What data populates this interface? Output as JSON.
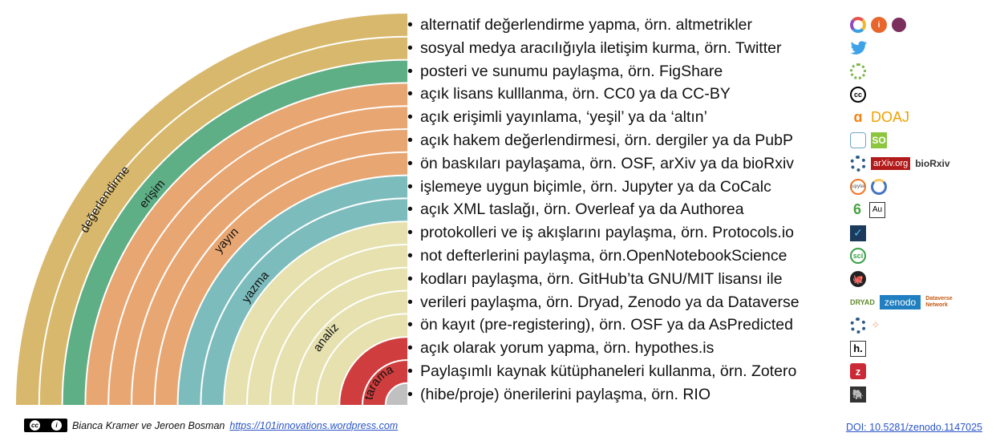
{
  "colors": {
    "degerlendirme": "#d8b86c",
    "erisim": "#5eae86",
    "yayin": "#e8a672",
    "yazma": "#7dbcbd",
    "analiz": "#e6e1af",
    "tarama": "#cf3d3e",
    "center": "#c0c0c0",
    "divider": "#ffffff"
  },
  "phases": [
    {
      "key": "degerlendirme",
      "label": "değerlendirme"
    },
    {
      "key": "erisim",
      "label": "erişim"
    },
    {
      "key": "yayin",
      "label": "yayın"
    },
    {
      "key": "yazma",
      "label": "yazma"
    },
    {
      "key": "analiz",
      "label": "analiz"
    },
    {
      "key": "tarama",
      "label": "tarama"
    }
  ],
  "practices": [
    "alternatif değerlendirme yapma, örn. altmetrikler",
    "sosyal medya aracılığıyla iletişim kurma, örn. Twitter",
    "posteri ve sunumu paylaşma, örn. FigShare",
    "açık lisans kulllanma, örn. CC0 ya da CC-BY",
    "açık erişimli yayınlama, ‘yeşil’ ya da ‘altın’",
    "açık hakem değerlendirmesi, örn. dergiler ya da PubP",
    "ön baskıları paylaşama, örn. OSF, arXiv ya da bioRxiv",
    "işlemeye uygun biçimle, örn. Jupyter ya da CoCalc",
    "açık XML taslağı, örn. Overleaf ya da Authorea",
    "protokolleri ve iş akışlarını paylaşma, örn. Protocols.io",
    "not defterlerini paylaşma, örn.OpenNotebookScience",
    "kodları paylaşma, örn. GitHub’ta GNU/MIT lisansı ile",
    "verileri paylaşma, örn. Dryad, Zenodo ya da Dataverse",
    "ön kayıt (pre-registering), örn. OSF ya da AsPredicted",
    "açık olarak yorum yapma, örn. hypothes.is",
    "Paylaşımlı kaynak kütüphaneleri kullanma, örn. Zotero",
    "(hibe/proje) önerilerini paylaşma, örn. RIO"
  ],
  "icon_text": {
    "doaj": "DOAJ",
    "so": "SO",
    "arxiv": "arXiv.org",
    "biorxiv": "bioRxiv",
    "jupyter": "jupyter",
    "au": "Au",
    "sci": "sci",
    "dryad": "DRYAD",
    "zenodo": "zenodo",
    "dataverse": "Dataverse Network",
    "hypothesis": "h.",
    "cc": "cc"
  },
  "footer": {
    "cc_badge": "cc by",
    "authors": "Bianca Kramer ve Jeroen Bosman",
    "link": "https://101innovations.wordpress.com",
    "doi": "DOI: 10.5281/zenodo.1147025"
  }
}
